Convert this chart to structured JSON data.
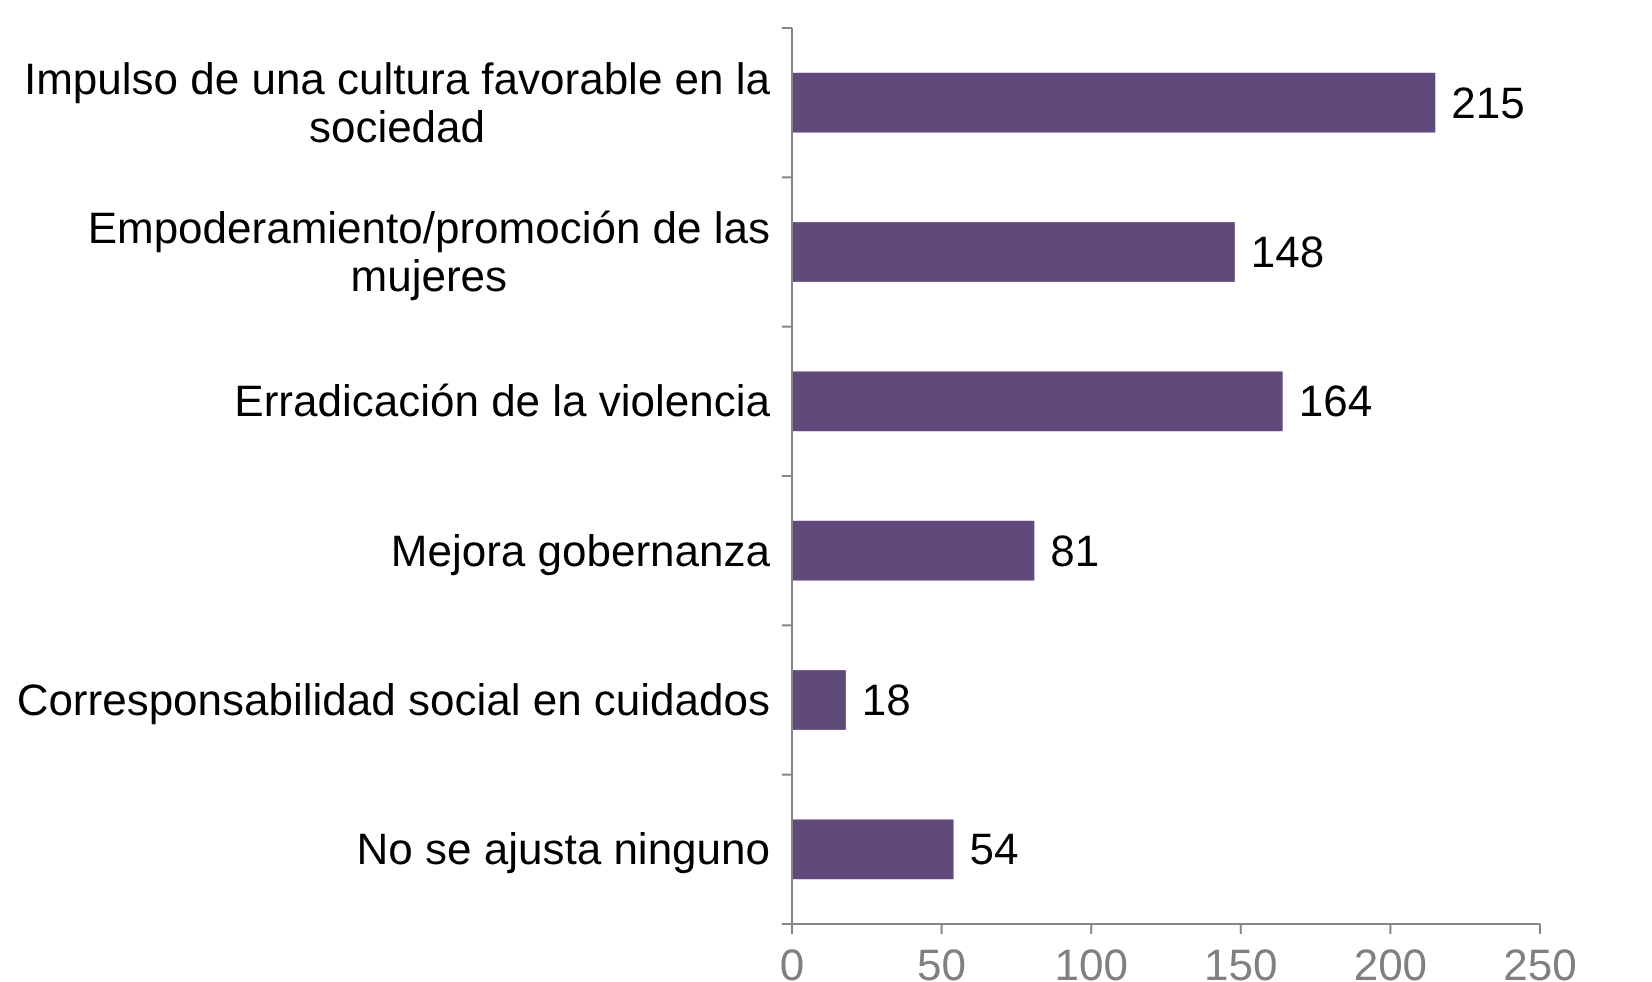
{
  "chart_data": {
    "type": "bar",
    "orientation": "horizontal",
    "categories": [
      "Impulso de una cultura favorable en la sociedad",
      "Empoderamiento/promoción de las mujeres",
      "Erradicación de la violencia",
      "Mejora gobernanza",
      "Corresponsabilidad social en cuidados",
      "No se ajusta ninguno"
    ],
    "values": [
      215,
      148,
      164,
      81,
      18,
      54
    ],
    "color": "#604a7b",
    "xlim": [
      0,
      250
    ],
    "xticks": [
      0,
      50,
      100,
      150,
      200,
      250
    ],
    "data_labels": true,
    "grid": false
  }
}
